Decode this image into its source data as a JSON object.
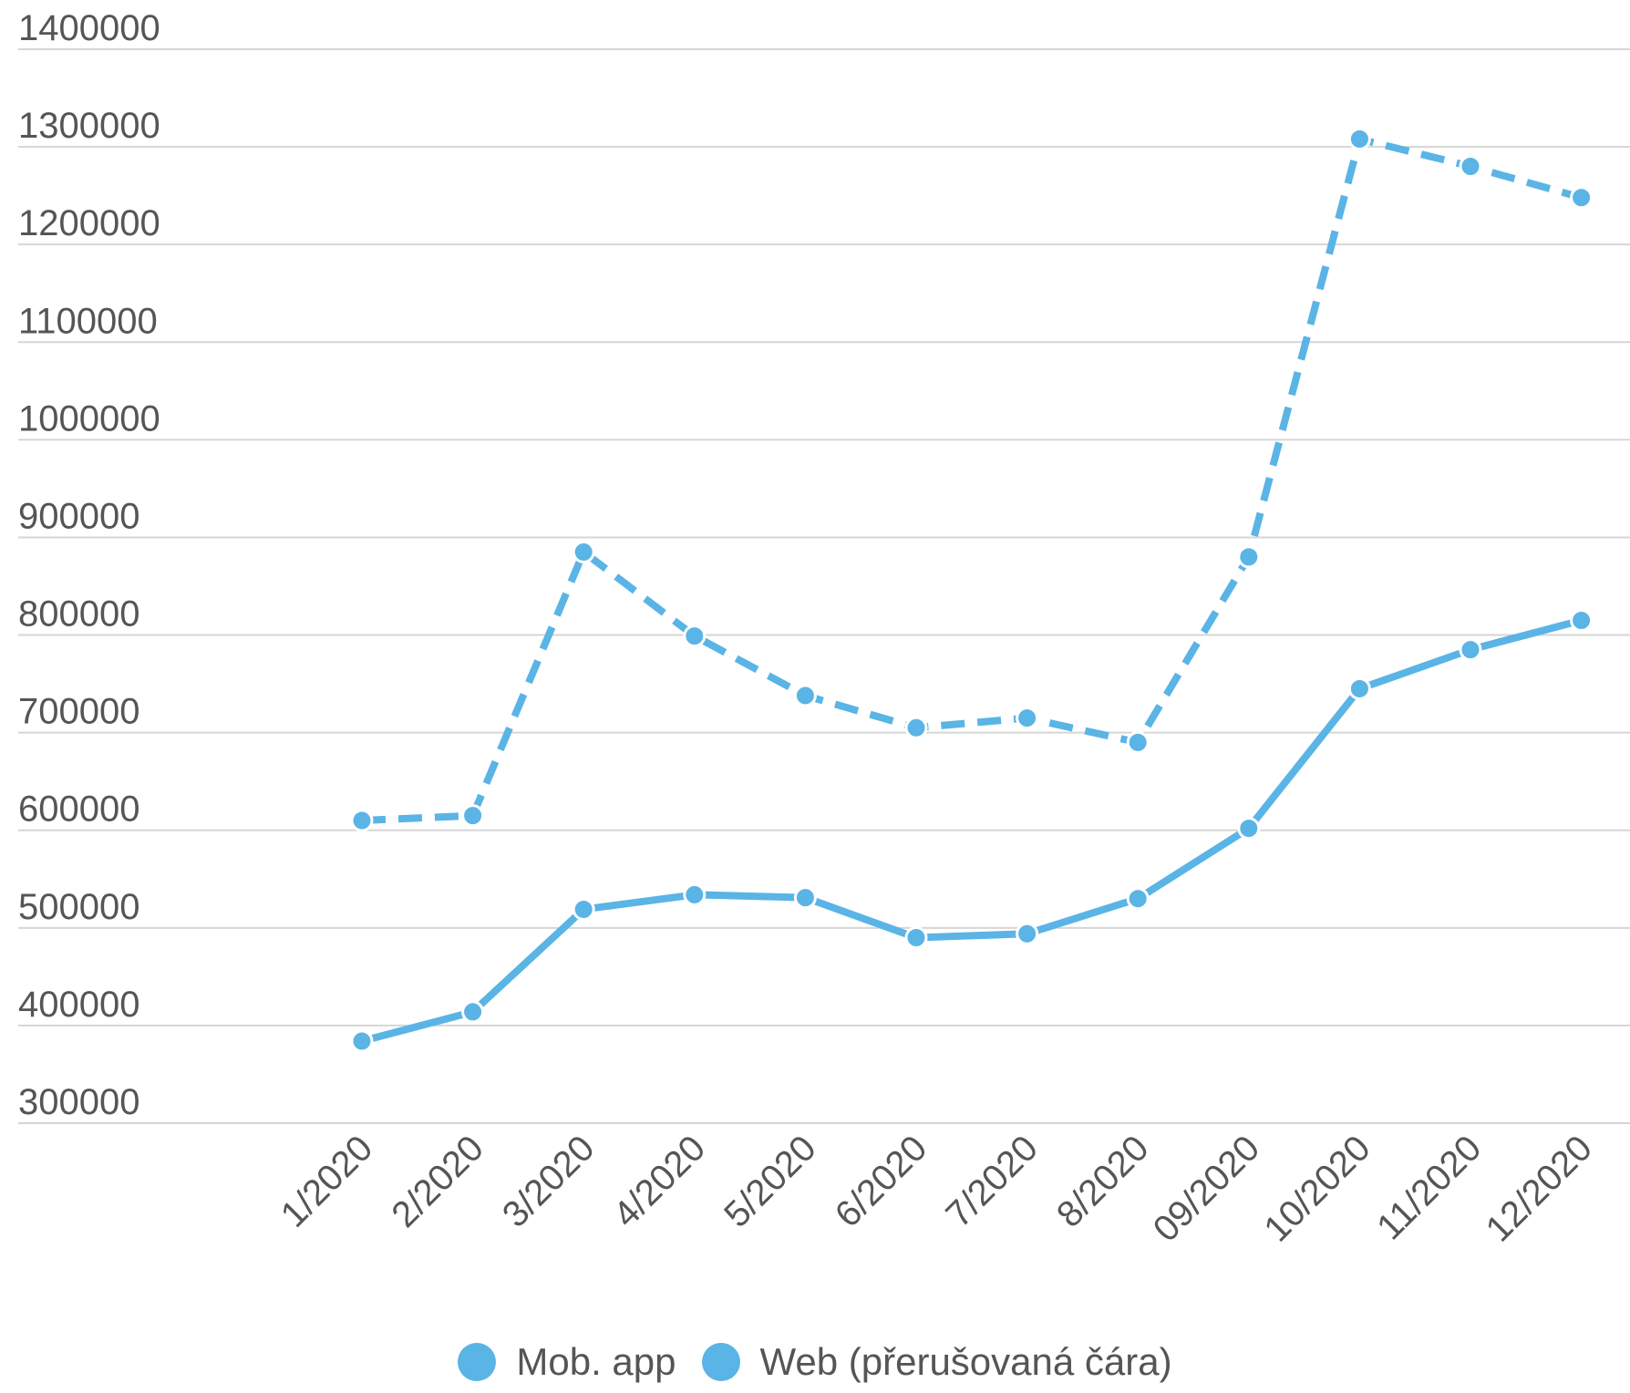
{
  "chart_data": {
    "type": "line",
    "categories": [
      "1/2020",
      "2/2020",
      "3/2020",
      "4/2020",
      "5/2020",
      "6/2020",
      "7/2020",
      "8/2020",
      "09/2020",
      "10/2020",
      "11/2020",
      "12/2020"
    ],
    "series": [
      {
        "name": "Mob. app",
        "values": [
          384000,
          414000,
          519000,
          534000,
          531000,
          490000,
          494000,
          530000,
          602000,
          745000,
          785000,
          815000
        ],
        "line_style": "solid",
        "color": "#5ab4e5"
      },
      {
        "name": "Web (přerušovaná čára)",
        "values": [
          610000,
          615000,
          885000,
          799000,
          738000,
          705000,
          715000,
          690000,
          880000,
          1308000,
          1280000,
          1248000
        ],
        "line_style": "dashed",
        "color": "#5ab4e5"
      }
    ],
    "yticks": [
      300000,
      400000,
      500000,
      600000,
      700000,
      800000,
      900000,
      1000000,
      1100000,
      1200000,
      1300000,
      1400000
    ],
    "ylim": [
      300000,
      1400000
    ],
    "grid": true,
    "legend_position": "bottom"
  }
}
